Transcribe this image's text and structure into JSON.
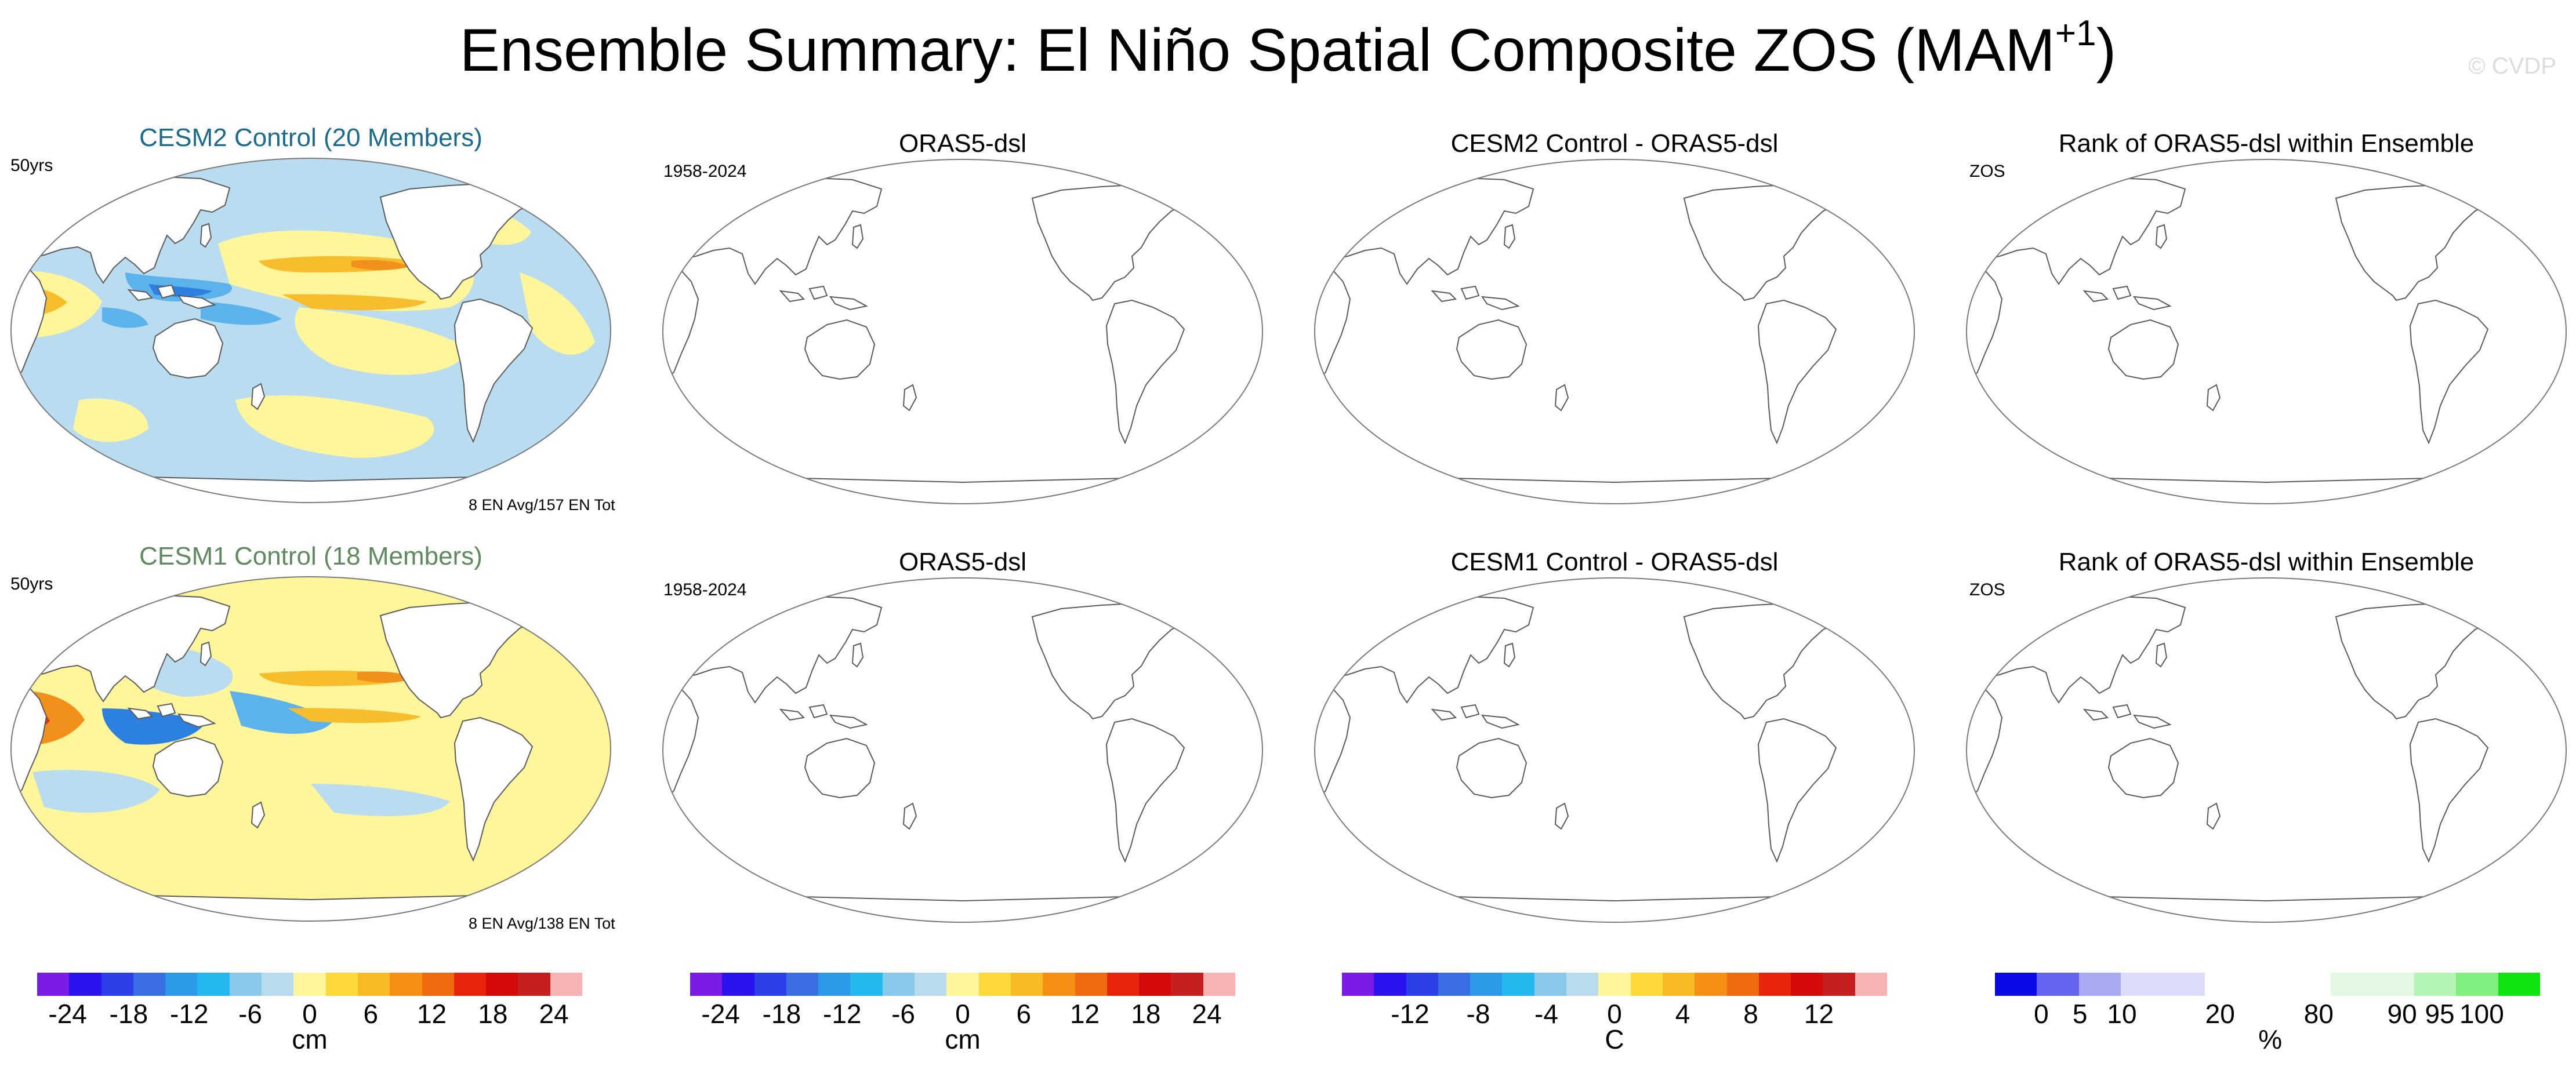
{
  "title": {
    "text": "Ensemble Summary: El Niño Spatial Composite ZOS (MAM",
    "sup": "+1",
    "close": ")"
  },
  "copyright": "© CVDP",
  "rows": [
    {
      "panels": [
        {
          "title": "CESM2 Control (20 Members)",
          "corner": "50yrs",
          "footer": "8 EN Avg/157 EN Tot"
        },
        {
          "title": "ORAS5-dsl",
          "corner": "1958-2024"
        },
        {
          "title": "CESM2 Control - ORAS5-dsl"
        },
        {
          "title": "Rank of ORAS5-dsl within Ensemble",
          "corner": "ZOS"
        }
      ]
    },
    {
      "panels": [
        {
          "title": "CESM1 Control (18 Members)",
          "corner": "50yrs",
          "footer": "8 EN Avg/138 EN Tot"
        },
        {
          "title": "ORAS5-dsl",
          "corner": "1958-2024"
        },
        {
          "title": "CESM1 Control - ORAS5-dsl"
        },
        {
          "title": "Rank of ORAS5-dsl within Ensemble",
          "corner": "ZOS"
        }
      ]
    }
  ],
  "colorbars": [
    {
      "unit": "cm",
      "colors": [
        "#7a1be6",
        "#2b13f0",
        "#2b3fe8",
        "#3a6ee2",
        "#2c98e8",
        "#25b8ee",
        "#8ac8ea",
        "#b8dcee",
        "#fff59a",
        "#ffd93a",
        "#f9bb24",
        "#f58f16",
        "#f06a10",
        "#e8240c",
        "#d50a0a",
        "#c42020",
        "#f8b4b4"
      ],
      "ticks": [
        "-24",
        "-18",
        "-12",
        "-6",
        "0",
        "6",
        "12",
        "18",
        "24"
      ]
    },
    {
      "unit": "cm",
      "colors": [
        "#7a1be6",
        "#2b13f0",
        "#2b3fe8",
        "#3a6ee2",
        "#2c98e8",
        "#25b8ee",
        "#8ac8ea",
        "#b8dcee",
        "#fff59a",
        "#ffd93a",
        "#f9bb24",
        "#f58f16",
        "#f06a10",
        "#e8240c",
        "#d50a0a",
        "#c42020",
        "#f8b4b4"
      ],
      "ticks": [
        "-24",
        "-18",
        "-12",
        "-6",
        "0",
        "6",
        "12",
        "18",
        "24"
      ]
    },
    {
      "unit": "C",
      "colors": [
        "#7a1be6",
        "#2b13f0",
        "#2b3fe8",
        "#3a6ee2",
        "#2c98e8",
        "#25b8ee",
        "#8ac8ea",
        "#b8dcee",
        "#fff59a",
        "#ffd93a",
        "#f9bb24",
        "#f58f16",
        "#f06a10",
        "#e8240c",
        "#d50a0a",
        "#c42020",
        "#f8b4b4"
      ],
      "ticks": [
        "-12",
        "-8",
        "-4",
        "0",
        "4",
        "8",
        "12"
      ]
    },
    {
      "unit": "%",
      "colors": [
        "#0a0ae6",
        "#6464f0",
        "#aaaaf4",
        "#dcdcf8",
        "#dcdcf8",
        "#ffffff",
        "#ffffff",
        "#ffffff",
        "#e2f8e2",
        "#e2f8e2",
        "#b4f4b4",
        "#80ee80",
        "#10e410"
      ],
      "ticks": [
        "0",
        "5",
        "10",
        "20",
        "80",
        "90",
        "95",
        "100"
      ]
    }
  ],
  "colors": {
    "land_edge": "#5a5a5a",
    "ocean_light_blue": "#b9dcf0",
    "ocean_yellow": "#fff59a",
    "blue_mid": "#5cb2ea",
    "blue_deep": "#2c80e0",
    "orange": "#f8bd2c",
    "orange_deep": "#f2901c",
    "red": "#e0300c"
  }
}
